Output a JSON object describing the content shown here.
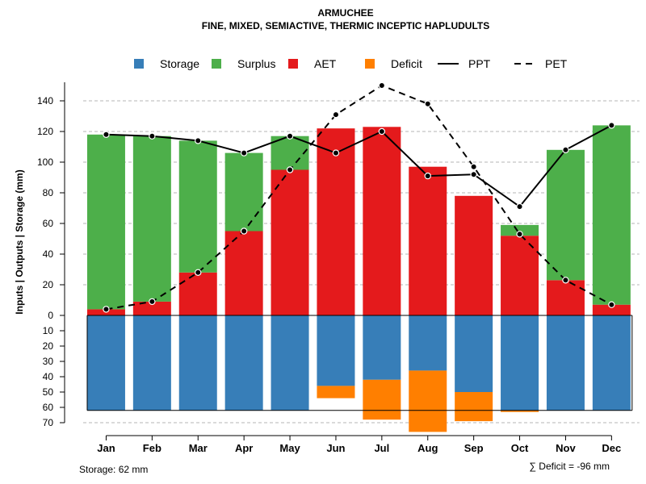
{
  "chart_data": {
    "type": "bar",
    "title": "ARMUCHEE",
    "subtitle": "FINE, MIXED, SEMIACTIVE, THERMIC INCEPTIC HAPLUDULTS",
    "ylabel": "Inputs | Outputs | Storage     (mm)",
    "categories": [
      "Jan",
      "Feb",
      "Mar",
      "Apr",
      "May",
      "Jun",
      "Jul",
      "Aug",
      "Sep",
      "Oct",
      "Nov",
      "Dec"
    ],
    "ylim": [
      -70,
      150
    ],
    "yticks": [
      {
        "value": 140,
        "label": "140"
      },
      {
        "value": 120,
        "label": "120"
      },
      {
        "value": 100,
        "label": "100"
      },
      {
        "value": 80,
        "label": "80"
      },
      {
        "value": 60,
        "label": "60"
      },
      {
        "value": 40,
        "label": "40"
      },
      {
        "value": 20,
        "label": "20"
      },
      {
        "value": 0,
        "label": "0"
      },
      {
        "value": -10,
        "label": "10"
      },
      {
        "value": -20,
        "label": "20"
      },
      {
        "value": -30,
        "label": "30"
      },
      {
        "value": -40,
        "label": "40"
      },
      {
        "value": -50,
        "label": "50"
      },
      {
        "value": -60,
        "label": "60"
      },
      {
        "value": -70,
        "label": "70"
      }
    ],
    "gridlines": [
      140,
      120,
      100,
      80,
      60,
      40,
      20,
      -70
    ],
    "legend": [
      {
        "key": "storage",
        "label": "Storage",
        "kind": "box",
        "color": "#377EB8"
      },
      {
        "key": "surplus",
        "label": "Surplus",
        "kind": "box",
        "color": "#4DAF4A"
      },
      {
        "key": "aet",
        "label": "AET",
        "kind": "box",
        "color": "#E41A1C"
      },
      {
        "key": "deficit",
        "label": "Deficit",
        "kind": "box",
        "color": "#FF7F00"
      },
      {
        "key": "ppt",
        "label": "PPT",
        "kind": "solid-line",
        "color": "#000000"
      },
      {
        "key": "pet",
        "label": "PET",
        "kind": "dashed-line",
        "color": "#000000"
      }
    ],
    "series": [
      {
        "name": "AET",
        "color": "#E41A1C",
        "values": [
          4,
          9,
          28,
          55,
          95,
          122,
          123,
          97,
          78,
          52,
          23,
          7
        ]
      },
      {
        "name": "Surplus",
        "color": "#4DAF4A",
        "values": [
          114,
          108,
          86,
          51,
          22,
          0,
          0,
          0,
          0,
          7,
          85,
          117
        ]
      },
      {
        "name": "Storage",
        "color": "#377EB8",
        "values": [
          62,
          62,
          62,
          62,
          62,
          46,
          42,
          36,
          50,
          62,
          62,
          62
        ]
      },
      {
        "name": "Deficit",
        "color": "#FF7F00",
        "values": [
          0,
          0,
          0,
          0,
          0,
          8,
          26,
          40,
          19,
          1,
          0,
          0
        ]
      },
      {
        "name": "PPT",
        "color": "#000000",
        "values": [
          118,
          117,
          114,
          106,
          117,
          106,
          120,
          91,
          92,
          71,
          108,
          124
        ]
      },
      {
        "name": "PET",
        "color": "#000000",
        "values": [
          4,
          9,
          28,
          55,
          95,
          131,
          150,
          138,
          97,
          53,
          23,
          7
        ]
      }
    ],
    "storage_capacity": 62,
    "notes": {
      "storage": "Storage: 62 mm",
      "deficit": "∑ Deficit = -96 mm"
    }
  }
}
